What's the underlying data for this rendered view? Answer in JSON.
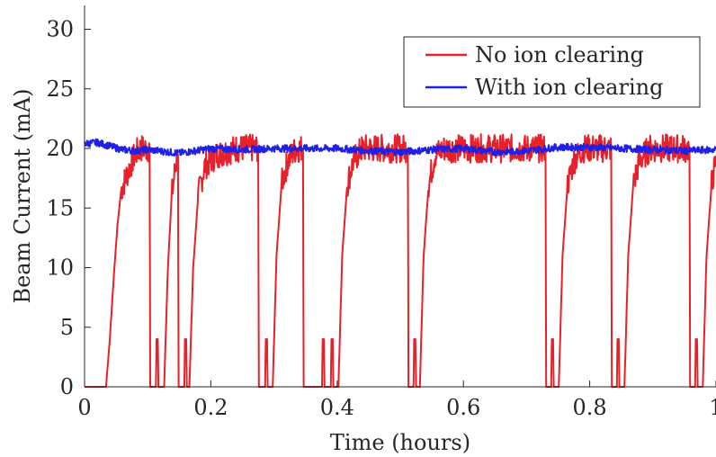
{
  "chart_data": {
    "type": "line",
    "title": "",
    "xlabel": "Time (hours)",
    "ylabel": "Beam Current (mA)",
    "xlim": [
      0,
      1
    ],
    "ylim": [
      0,
      32
    ],
    "xticks": [
      0,
      0.2,
      0.4,
      0.6,
      0.8,
      1
    ],
    "xtick_labels": [
      "0",
      "0.2",
      "0.4",
      "0.6",
      "0.8",
      "1"
    ],
    "yticks": [
      0,
      5,
      10,
      15,
      20,
      25,
      30
    ],
    "ytick_labels": [
      "0",
      "5",
      "10",
      "15",
      "20",
      "25",
      "30"
    ],
    "grid": false,
    "legend_position": "top-right",
    "series": [
      {
        "name": "No ion clearing",
        "color": "#e8202a",
        "noise": 1.2,
        "points": [
          [
            0.0,
            0
          ],
          [
            0.034,
            0
          ],
          [
            0.04,
            4
          ],
          [
            0.046,
            9
          ],
          [
            0.052,
            13.5
          ],
          [
            0.058,
            16.5
          ],
          [
            0.065,
            17.5
          ],
          [
            0.072,
            18.5
          ],
          [
            0.08,
            19.5
          ],
          [
            0.088,
            20
          ],
          [
            0.096,
            20
          ],
          [
            0.103,
            20
          ],
          [
            0.104,
            0
          ],
          [
            0.113,
            0
          ],
          [
            0.114,
            4
          ],
          [
            0.116,
            4
          ],
          [
            0.117,
            0
          ],
          [
            0.126,
            0
          ],
          [
            0.132,
            10
          ],
          [
            0.138,
            16
          ],
          [
            0.144,
            18.5
          ],
          [
            0.148,
            19.5
          ],
          [
            0.149,
            0
          ],
          [
            0.158,
            0
          ],
          [
            0.159,
            4
          ],
          [
            0.161,
            4
          ],
          [
            0.162,
            0
          ],
          [
            0.166,
            0
          ],
          [
            0.172,
            10
          ],
          [
            0.18,
            16
          ],
          [
            0.19,
            18.5
          ],
          [
            0.21,
            19.5
          ],
          [
            0.24,
            20
          ],
          [
            0.27,
            20
          ],
          [
            0.275,
            20
          ],
          [
            0.276,
            0
          ],
          [
            0.286,
            0
          ],
          [
            0.287,
            4
          ],
          [
            0.289,
            4
          ],
          [
            0.29,
            0
          ],
          [
            0.298,
            0
          ],
          [
            0.304,
            11
          ],
          [
            0.312,
            17
          ],
          [
            0.322,
            19
          ],
          [
            0.335,
            20
          ],
          [
            0.346,
            20
          ],
          [
            0.347,
            0
          ],
          [
            0.357,
            0
          ],
          [
            0.359,
            0
          ],
          [
            0.362,
            0
          ],
          [
            0.37,
            0
          ],
          [
            0.376,
            0
          ],
          [
            0.377,
            4
          ],
          [
            0.379,
            4
          ],
          [
            0.38,
            0
          ],
          [
            0.39,
            0
          ],
          [
            0.391,
            4
          ],
          [
            0.393,
            4
          ],
          [
            0.394,
            0
          ],
          [
            0.402,
            0
          ],
          [
            0.408,
            11
          ],
          [
            0.416,
            17
          ],
          [
            0.426,
            19
          ],
          [
            0.44,
            20
          ],
          [
            0.48,
            20
          ],
          [
            0.512,
            20
          ],
          [
            0.513,
            0
          ],
          [
            0.521,
            0
          ],
          [
            0.522,
            4
          ],
          [
            0.524,
            4
          ],
          [
            0.525,
            0
          ],
          [
            0.531,
            0
          ],
          [
            0.537,
            11
          ],
          [
            0.545,
            17
          ],
          [
            0.555,
            19.5
          ],
          [
            0.57,
            20
          ],
          [
            0.65,
            20
          ],
          [
            0.7,
            20
          ],
          [
            0.73,
            20
          ],
          [
            0.731,
            0
          ],
          [
            0.739,
            0
          ],
          [
            0.74,
            4
          ],
          [
            0.742,
            4
          ],
          [
            0.743,
            0
          ],
          [
            0.751,
            0
          ],
          [
            0.757,
            11
          ],
          [
            0.765,
            17
          ],
          [
            0.775,
            19
          ],
          [
            0.79,
            20
          ],
          [
            0.834,
            20
          ],
          [
            0.835,
            0
          ],
          [
            0.843,
            0
          ],
          [
            0.844,
            4
          ],
          [
            0.846,
            4
          ],
          [
            0.847,
            0
          ],
          [
            0.855,
            0
          ],
          [
            0.861,
            11
          ],
          [
            0.869,
            17
          ],
          [
            0.879,
            19
          ],
          [
            0.895,
            20
          ],
          [
            0.958,
            20
          ],
          [
            0.959,
            0
          ],
          [
            0.967,
            0
          ],
          [
            0.968,
            4
          ],
          [
            0.97,
            4
          ],
          [
            0.971,
            0
          ],
          [
            0.979,
            0
          ],
          [
            0.985,
            11
          ],
          [
            0.993,
            17
          ],
          [
            1.0,
            19
          ]
        ]
      },
      {
        "name": "With ion clearing",
        "color": "#1f1fe6",
        "noise": 0.3,
        "points": [
          [
            0.0,
            20.4
          ],
          [
            0.02,
            20.5
          ],
          [
            0.04,
            20.2
          ],
          [
            0.06,
            19.9
          ],
          [
            0.08,
            19.8
          ],
          [
            0.1,
            19.9
          ],
          [
            0.15,
            19.6
          ],
          [
            0.2,
            20.0
          ],
          [
            0.25,
            19.9
          ],
          [
            0.3,
            20.0
          ],
          [
            0.35,
            20.0
          ],
          [
            0.4,
            20.0
          ],
          [
            0.45,
            19.8
          ],
          [
            0.5,
            19.7
          ],
          [
            0.55,
            19.9
          ],
          [
            0.6,
            20.0
          ],
          [
            0.65,
            19.7
          ],
          [
            0.7,
            19.8
          ],
          [
            0.75,
            20.1
          ],
          [
            0.8,
            20.1
          ],
          [
            0.85,
            20.0
          ],
          [
            0.9,
            19.9
          ],
          [
            0.95,
            19.8
          ],
          [
            1.0,
            19.9
          ]
        ]
      }
    ]
  }
}
